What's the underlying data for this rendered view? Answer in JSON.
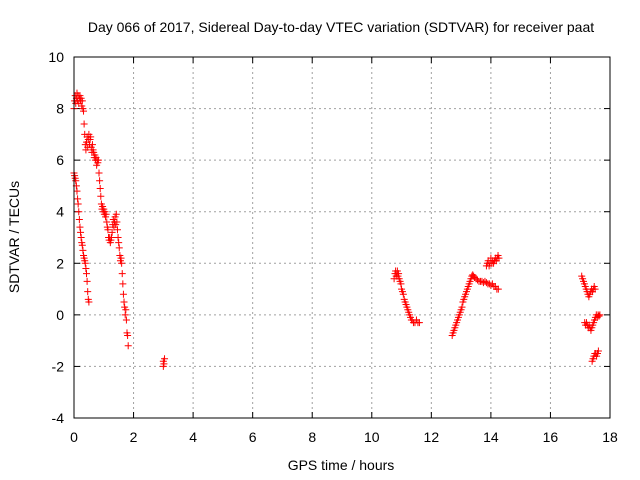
{
  "chart_data": {
    "type": "scatter",
    "title": "Day 066 of 2017, Sidereal Day-to-day VTEC variation (SDTVAR) for receiver paat",
    "xlabel": "GPS time / hours",
    "ylabel": "SDTVAR / TECUs",
    "xlim": [
      0,
      18
    ],
    "ylim": [
      -4,
      10
    ],
    "xticks": [
      "0",
      "2",
      "4",
      "6",
      "8",
      "10",
      "12",
      "14",
      "16",
      "18"
    ],
    "yticks": [
      "-4",
      "-2",
      "0",
      "2",
      "4",
      "6",
      "8",
      "10"
    ],
    "grid": true,
    "marker": "+",
    "color": "#ff0000",
    "series": [
      {
        "name": "SDTVAR",
        "points": [
          [
            0.0,
            8.0
          ],
          [
            0.02,
            8.3
          ],
          [
            0.04,
            8.5
          ],
          [
            0.06,
            8.2
          ],
          [
            0.08,
            8.4
          ],
          [
            0.1,
            8.6
          ],
          [
            0.12,
            8.3
          ],
          [
            0.14,
            8.5
          ],
          [
            0.16,
            8.2
          ],
          [
            0.18,
            8.4
          ],
          [
            0.2,
            8.5
          ],
          [
            0.22,
            8.3
          ],
          [
            0.24,
            8.4
          ],
          [
            0.26,
            8.1
          ],
          [
            0.28,
            8.3
          ],
          [
            0.3,
            8.0
          ],
          [
            0.32,
            7.9
          ],
          [
            0.34,
            7.4
          ],
          [
            0.36,
            7.0
          ],
          [
            0.38,
            6.6
          ],
          [
            0.4,
            6.4
          ],
          [
            0.42,
            6.7
          ],
          [
            0.44,
            6.9
          ],
          [
            0.46,
            6.5
          ],
          [
            0.48,
            6.8
          ],
          [
            0.5,
            7.0
          ],
          [
            0.52,
            6.6
          ],
          [
            0.54,
            6.8
          ],
          [
            0.56,
            6.9
          ],
          [
            0.58,
            6.5
          ],
          [
            0.6,
            6.3
          ],
          [
            0.62,
            6.6
          ],
          [
            0.64,
            6.4
          ],
          [
            0.66,
            6.3
          ],
          [
            0.68,
            6.1
          ],
          [
            0.7,
            6.2
          ],
          [
            0.72,
            6.0
          ],
          [
            0.74,
            6.1
          ],
          [
            0.76,
            5.8
          ],
          [
            0.78,
            6.0
          ],
          [
            0.8,
            5.9
          ],
          [
            0.82,
            6.0
          ],
          [
            0.84,
            5.5
          ],
          [
            0.86,
            5.2
          ],
          [
            0.88,
            4.9
          ],
          [
            0.9,
            4.6
          ],
          [
            0.92,
            4.3
          ],
          [
            0.94,
            4.1
          ],
          [
            0.96,
            4.2
          ],
          [
            0.98,
            4.0
          ],
          [
            1.0,
            4.1
          ],
          [
            1.02,
            3.9
          ],
          [
            1.04,
            4.0
          ],
          [
            1.06,
            3.8
          ],
          [
            1.08,
            3.9
          ],
          [
            1.1,
            3.6
          ],
          [
            1.12,
            3.4
          ],
          [
            1.14,
            3.3
          ],
          [
            1.16,
            3.0
          ],
          [
            1.18,
            2.9
          ],
          [
            1.2,
            3.0
          ],
          [
            1.22,
            2.8
          ],
          [
            1.24,
            2.9
          ],
          [
            1.26,
            3.0
          ],
          [
            1.28,
            3.2
          ],
          [
            1.3,
            3.5
          ],
          [
            1.32,
            3.7
          ],
          [
            1.34,
            3.4
          ],
          [
            1.36,
            3.6
          ],
          [
            1.38,
            3.8
          ],
          [
            1.4,
            3.5
          ],
          [
            1.42,
            3.9
          ],
          [
            1.44,
            3.6
          ],
          [
            1.46,
            3.3
          ],
          [
            1.48,
            3.0
          ],
          [
            1.5,
            2.8
          ],
          [
            1.52,
            2.6
          ],
          [
            1.54,
            2.3
          ],
          [
            1.56,
            2.1
          ],
          [
            1.58,
            2.2
          ],
          [
            1.6,
            2.0
          ],
          [
            1.62,
            1.6
          ],
          [
            1.64,
            1.2
          ],
          [
            1.66,
            0.8
          ],
          [
            1.68,
            0.5
          ],
          [
            1.7,
            0.3
          ],
          [
            1.72,
            0.0
          ],
          [
            1.74,
            0.2
          ],
          [
            1.76,
            -0.2
          ],
          [
            1.78,
            -0.7
          ],
          [
            1.8,
            -0.8
          ],
          [
            1.82,
            -1.2
          ],
          [
            0.0,
            5.5
          ],
          [
            0.02,
            5.4
          ],
          [
            0.04,
            5.3
          ],
          [
            0.06,
            5.2
          ],
          [
            0.08,
            5.0
          ],
          [
            0.1,
            4.8
          ],
          [
            0.12,
            4.5
          ],
          [
            0.14,
            4.3
          ],
          [
            0.16,
            4.0
          ],
          [
            0.18,
            3.7
          ],
          [
            0.2,
            3.4
          ],
          [
            0.22,
            3.2
          ],
          [
            0.24,
            3.0
          ],
          [
            0.26,
            2.8
          ],
          [
            0.28,
            2.7
          ],
          [
            0.3,
            2.5
          ],
          [
            0.32,
            2.3
          ],
          [
            0.34,
            2.2
          ],
          [
            0.36,
            2.1
          ],
          [
            0.38,
            2.0
          ],
          [
            0.4,
            1.8
          ],
          [
            0.42,
            1.6
          ],
          [
            0.44,
            1.3
          ],
          [
            0.46,
            0.9
          ],
          [
            0.48,
            0.6
          ],
          [
            0.5,
            0.5
          ],
          [
            3.0,
            -1.8
          ],
          [
            3.02,
            -1.9
          ],
          [
            3.04,
            -1.7
          ],
          [
            3.0,
            -2.0
          ],
          [
            10.75,
            1.4
          ],
          [
            10.78,
            1.6
          ],
          [
            10.8,
            1.7
          ],
          [
            10.82,
            1.5
          ],
          [
            10.84,
            1.6
          ],
          [
            10.86,
            1.7
          ],
          [
            10.88,
            1.5
          ],
          [
            10.9,
            1.6
          ],
          [
            10.92,
            1.4
          ],
          [
            10.95,
            1.3
          ],
          [
            10.98,
            1.2
          ],
          [
            11.0,
            1.0
          ],
          [
            11.03,
            0.9
          ],
          [
            11.06,
            0.8
          ],
          [
            11.09,
            0.6
          ],
          [
            11.12,
            0.5
          ],
          [
            11.15,
            0.4
          ],
          [
            11.18,
            0.3
          ],
          [
            11.21,
            0.2
          ],
          [
            11.24,
            0.1
          ],
          [
            11.27,
            0.0
          ],
          [
            11.3,
            -0.1
          ],
          [
            11.33,
            -0.2
          ],
          [
            11.36,
            -0.2
          ],
          [
            11.4,
            -0.3
          ],
          [
            11.45,
            -0.3
          ],
          [
            11.5,
            -0.2
          ],
          [
            11.55,
            -0.3
          ],
          [
            11.6,
            -0.3
          ],
          [
            12.7,
            -0.8
          ],
          [
            12.73,
            -0.7
          ],
          [
            12.76,
            -0.6
          ],
          [
            12.79,
            -0.5
          ],
          [
            12.82,
            -0.4
          ],
          [
            12.85,
            -0.3
          ],
          [
            12.88,
            -0.2
          ],
          [
            12.91,
            -0.1
          ],
          [
            12.94,
            0.0
          ],
          [
            12.97,
            0.1
          ],
          [
            13.0,
            0.2
          ],
          [
            13.03,
            0.3
          ],
          [
            13.06,
            0.5
          ],
          [
            13.09,
            0.6
          ],
          [
            13.12,
            0.7
          ],
          [
            13.15,
            0.8
          ],
          [
            13.18,
            0.9
          ],
          [
            13.21,
            1.0
          ],
          [
            13.24,
            1.1
          ],
          [
            13.27,
            1.2
          ],
          [
            13.3,
            1.3
          ],
          [
            13.33,
            1.4
          ],
          [
            13.36,
            1.5
          ],
          [
            13.39,
            1.55
          ],
          [
            13.42,
            1.5
          ],
          [
            13.45,
            1.45
          ],
          [
            13.5,
            1.4
          ],
          [
            13.55,
            1.35
          ],
          [
            13.6,
            1.3
          ],
          [
            13.65,
            1.3
          ],
          [
            13.7,
            1.3
          ],
          [
            13.75,
            1.25
          ],
          [
            13.8,
            1.3
          ],
          [
            13.85,
            1.25
          ],
          [
            13.9,
            1.2
          ],
          [
            13.95,
            1.2
          ],
          [
            14.0,
            1.15
          ],
          [
            14.05,
            1.2
          ],
          [
            14.1,
            1.1
          ],
          [
            14.15,
            1.1
          ],
          [
            14.2,
            1.0
          ],
          [
            14.25,
            1.0
          ],
          [
            13.85,
            1.9
          ],
          [
            13.88,
            2.0
          ],
          [
            13.91,
            2.1
          ],
          [
            13.94,
            1.9
          ],
          [
            13.97,
            2.0
          ],
          [
            14.0,
            2.2
          ],
          [
            14.03,
            2.0
          ],
          [
            14.06,
            2.1
          ],
          [
            14.09,
            2.0
          ],
          [
            14.12,
            2.1
          ],
          [
            14.15,
            2.2
          ],
          [
            14.18,
            2.1
          ],
          [
            14.21,
            2.2
          ],
          [
            14.24,
            2.3
          ],
          [
            14.27,
            2.2
          ],
          [
            17.05,
            1.5
          ],
          [
            17.08,
            1.4
          ],
          [
            17.11,
            1.3
          ],
          [
            17.14,
            1.2
          ],
          [
            17.17,
            1.1
          ],
          [
            17.2,
            1.0
          ],
          [
            17.23,
            0.9
          ],
          [
            17.26,
            0.8
          ],
          [
            17.29,
            0.7
          ],
          [
            17.32,
            0.8
          ],
          [
            17.35,
            0.9
          ],
          [
            17.38,
            1.0
          ],
          [
            17.41,
            0.9
          ],
          [
            17.44,
            1.0
          ],
          [
            17.47,
            1.1
          ],
          [
            17.5,
            1.0
          ],
          [
            17.15,
            -0.3
          ],
          [
            17.18,
            -0.4
          ],
          [
            17.21,
            -0.3
          ],
          [
            17.24,
            -0.4
          ],
          [
            17.27,
            -0.5
          ],
          [
            17.3,
            -0.4
          ],
          [
            17.33,
            -0.5
          ],
          [
            17.36,
            -0.6
          ],
          [
            17.39,
            -0.5
          ],
          [
            17.42,
            -0.4
          ],
          [
            17.45,
            -0.3
          ],
          [
            17.48,
            -0.2
          ],
          [
            17.51,
            -0.1
          ],
          [
            17.54,
            0.0
          ],
          [
            17.57,
            -0.1
          ],
          [
            17.6,
            0.0
          ],
          [
            17.63,
            -0.05
          ],
          [
            17.66,
            0.0
          ],
          [
            17.4,
            -1.8
          ],
          [
            17.43,
            -1.7
          ],
          [
            17.46,
            -1.6
          ],
          [
            17.49,
            -1.5
          ],
          [
            17.52,
            -1.5
          ],
          [
            17.55,
            -1.6
          ],
          [
            17.58,
            -1.5
          ],
          [
            17.61,
            -1.4
          ]
        ]
      }
    ]
  }
}
